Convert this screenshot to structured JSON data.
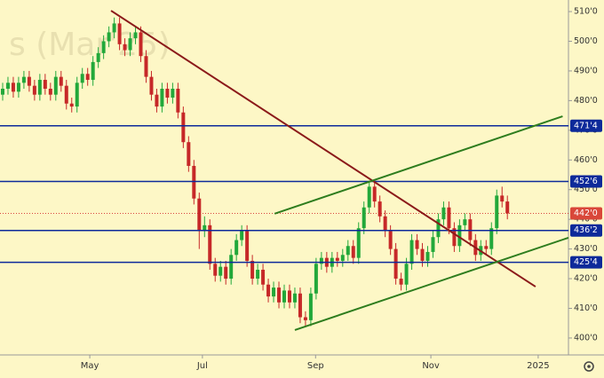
{
  "chart_data": {
    "type": "candlestick",
    "watermark": "s (Mar'25)",
    "ylim": [
      394.3,
      513.9
    ],
    "yticks": [
      {
        "value": 400,
        "label": "400'0"
      },
      {
        "value": 410,
        "label": "410'0"
      },
      {
        "value": 420,
        "label": "420'0"
      },
      {
        "value": 430,
        "label": "430'0"
      },
      {
        "value": 440,
        "label": "440'0"
      },
      {
        "value": 450,
        "label": "450'0"
      },
      {
        "value": 460,
        "label": "460'0"
      },
      {
        "value": 470,
        "label": "470'0"
      },
      {
        "value": 480,
        "label": "480'0"
      },
      {
        "value": 490,
        "label": "490'0"
      },
      {
        "value": 500,
        "label": "500'0"
      },
      {
        "value": 510,
        "label": "510'0"
      }
    ],
    "xlim": [
      -0.5,
      106.5
    ],
    "xticks": [
      {
        "value": 16.4,
        "label": "May"
      },
      {
        "value": 37.6,
        "label": "Jul"
      },
      {
        "value": 58.9,
        "label": "Sep"
      },
      {
        "value": 80.6,
        "label": "Nov"
      },
      {
        "value": 100.8,
        "label": "2025"
      }
    ],
    "up_color": "#22a83a",
    "down_color": "#c62828",
    "ohlc": [
      [
        482,
        486,
        480,
        484
      ],
      [
        484,
        488,
        482,
        486
      ],
      [
        486,
        488,
        481,
        483
      ],
      [
        483,
        488,
        481,
        486
      ],
      [
        486,
        490,
        484,
        488
      ],
      [
        488,
        490,
        483,
        485
      ],
      [
        485,
        487,
        480,
        482
      ],
      [
        482,
        489,
        480,
        487
      ],
      [
        487,
        489,
        482,
        484
      ],
      [
        484,
        486,
        480,
        482
      ],
      [
        482,
        490,
        480,
        488
      ],
      [
        488,
        490,
        483,
        485
      ],
      [
        485,
        487,
        477,
        479
      ],
      [
        479,
        481,
        476,
        478
      ],
      [
        478,
        488,
        476,
        486
      ],
      [
        486,
        491,
        484,
        489
      ],
      [
        489,
        491,
        485,
        487
      ],
      [
        487,
        495,
        485,
        493
      ],
      [
        493,
        498,
        491,
        496
      ],
      [
        496,
        502,
        494,
        500
      ],
      [
        500,
        505,
        498,
        503
      ],
      [
        503,
        508,
        501,
        506
      ],
      [
        506,
        508,
        497,
        499
      ],
      [
        499,
        501,
        495,
        497
      ],
      [
        497,
        503,
        495,
        501
      ],
      [
        501,
        505,
        499,
        503
      ],
      [
        503,
        505,
        493,
        495
      ],
      [
        495,
        497,
        486,
        488
      ],
      [
        488,
        490,
        480,
        482
      ],
      [
        482,
        484,
        476,
        478
      ],
      [
        478,
        486,
        476,
        484
      ],
      [
        484,
        486,
        479,
        481
      ],
      [
        481,
        486,
        479,
        484
      ],
      [
        484,
        486,
        474,
        476
      ],
      [
        476,
        478,
        464,
        466
      ],
      [
        466,
        468,
        456,
        458
      ],
      [
        458,
        460,
        445,
        447
      ],
      [
        447,
        449,
        430,
        436
      ],
      [
        436,
        441,
        434,
        438
      ],
      [
        438,
        440,
        423,
        425
      ],
      [
        425,
        427,
        419,
        421
      ],
      [
        421,
        426,
        419,
        424
      ],
      [
        424,
        426,
        418,
        420
      ],
      [
        420,
        430,
        418,
        428
      ],
      [
        428,
        435,
        426,
        433
      ],
      [
        433,
        438,
        431,
        436
      ],
      [
        436,
        438,
        424,
        426
      ],
      [
        426,
        428,
        418,
        420
      ],
      [
        420,
        425,
        418,
        423
      ],
      [
        423,
        425,
        416,
        418
      ],
      [
        418,
        420,
        412,
        414
      ],
      [
        414,
        419,
        412,
        417
      ],
      [
        417,
        419,
        410,
        412
      ],
      [
        412,
        418,
        410,
        416
      ],
      [
        416,
        418,
        410,
        412
      ],
      [
        412,
        417,
        410,
        415
      ],
      [
        415,
        417,
        405,
        407
      ],
      [
        407,
        409,
        404,
        406
      ],
      [
        406,
        417,
        404,
        415
      ],
      [
        415,
        427,
        413,
        425
      ],
      [
        425,
        429,
        423,
        427
      ],
      [
        427,
        429,
        422,
        424
      ],
      [
        424,
        429,
        422,
        427
      ],
      [
        427,
        429,
        424,
        426
      ],
      [
        426,
        430,
        424,
        428
      ],
      [
        428,
        433,
        426,
        431
      ],
      [
        431,
        433,
        425,
        427
      ],
      [
        427,
        439,
        425,
        437
      ],
      [
        437,
        446,
        435,
        444
      ],
      [
        444,
        453,
        442,
        451
      ],
      [
        451,
        453,
        444,
        446
      ],
      [
        446,
        448,
        439,
        441
      ],
      [
        441,
        443,
        434,
        436
      ],
      [
        436,
        438,
        428,
        430
      ],
      [
        430,
        432,
        418,
        420
      ],
      [
        420,
        422,
        416,
        418
      ],
      [
        418,
        427,
        416,
        425
      ],
      [
        425,
        435,
        423,
        433
      ],
      [
        433,
        435,
        428,
        430
      ],
      [
        430,
        432,
        424,
        426
      ],
      [
        426,
        431,
        424,
        429
      ],
      [
        429,
        436,
        427,
        434
      ],
      [
        434,
        442,
        432,
        440
      ],
      [
        440,
        446,
        438,
        444
      ],
      [
        444,
        446,
        435,
        437
      ],
      [
        437,
        439,
        429,
        431
      ],
      [
        431,
        440,
        429,
        438
      ],
      [
        438,
        442,
        436,
        440
      ],
      [
        440,
        442,
        431,
        433
      ],
      [
        433,
        435,
        426,
        428
      ],
      [
        428,
        433,
        426,
        431
      ],
      [
        431,
        433,
        428,
        430
      ],
      [
        430,
        439,
        428,
        437
      ],
      [
        437,
        450,
        435,
        448
      ],
      [
        448,
        451,
        444,
        446
      ],
      [
        446,
        448,
        440,
        442
      ]
    ],
    "levels": [
      {
        "value": 471.5,
        "label": "471'4",
        "color": "#0d2a9a"
      },
      {
        "value": 452.75,
        "label": "452'6",
        "color": "#0d2a9a"
      },
      {
        "value": 436.25,
        "label": "436'2",
        "color": "#0d2a9a"
      },
      {
        "value": 425.5,
        "label": "425'4",
        "color": "#0d2a9a"
      }
    ],
    "last_price": {
      "value": 442,
      "label": "442'0",
      "color": "#d9473a"
    },
    "trendlines": [
      {
        "color": "#8b1a1a",
        "x": [
          20.4,
          100.3
        ],
        "y": [
          510.3,
          417.3
        ]
      },
      {
        "color": "#2e7d1e",
        "x": [
          51.2,
          105.4
        ],
        "y": [
          441.9,
          474.7
        ]
      },
      {
        "color": "#2e7d1e",
        "x": [
          55.0,
          106.5
        ],
        "y": [
          402.7,
          433.8
        ]
      }
    ]
  }
}
